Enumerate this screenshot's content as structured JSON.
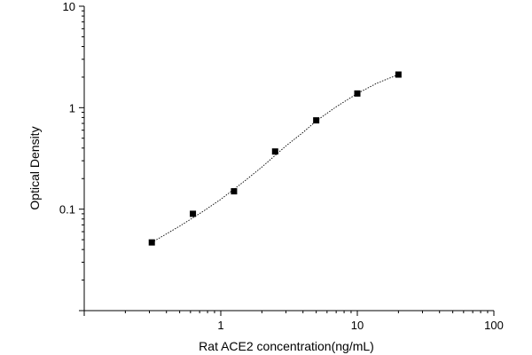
{
  "chart_data": {
    "type": "scatter",
    "xlabel": "Rat ACE2 concentration(ng/mL)",
    "ylabel": "Optical Density",
    "x_scale": "log",
    "y_scale": "log",
    "xlim": [
      0.1,
      100
    ],
    "ylim": [
      0.01,
      10
    ],
    "x_ticks": [
      {
        "value": 1,
        "label": "1"
      },
      {
        "value": 10,
        "label": "10"
      },
      {
        "value": 100,
        "label": "100"
      }
    ],
    "y_ticks": [
      {
        "value": 0.1,
        "label": "0.1"
      },
      {
        "value": 1,
        "label": "1"
      },
      {
        "value": 10,
        "label": "10"
      }
    ],
    "grid": false,
    "legend": "none",
    "series": [
      {
        "marker": "square",
        "x": [
          0.3125,
          0.625,
          1.25,
          2.5,
          5,
          10,
          20
        ],
        "y": [
          0.047,
          0.09,
          0.15,
          0.37,
          0.75,
          1.38,
          2.12
        ]
      }
    ],
    "fit_curve": {
      "style": "dotted",
      "x": [
        0.3125,
        0.5,
        0.75,
        1.0,
        1.5,
        2.0,
        3.0,
        4.0,
        5.0,
        7.0,
        10.0,
        14.0,
        20.0
      ],
      "y": [
        0.047,
        0.068,
        0.096,
        0.125,
        0.19,
        0.26,
        0.42,
        0.57,
        0.74,
        1.02,
        1.38,
        1.75,
        2.12
      ]
    },
    "colors": {
      "marker": "#000000",
      "curve": "#000000",
      "axis": "#000000"
    }
  }
}
